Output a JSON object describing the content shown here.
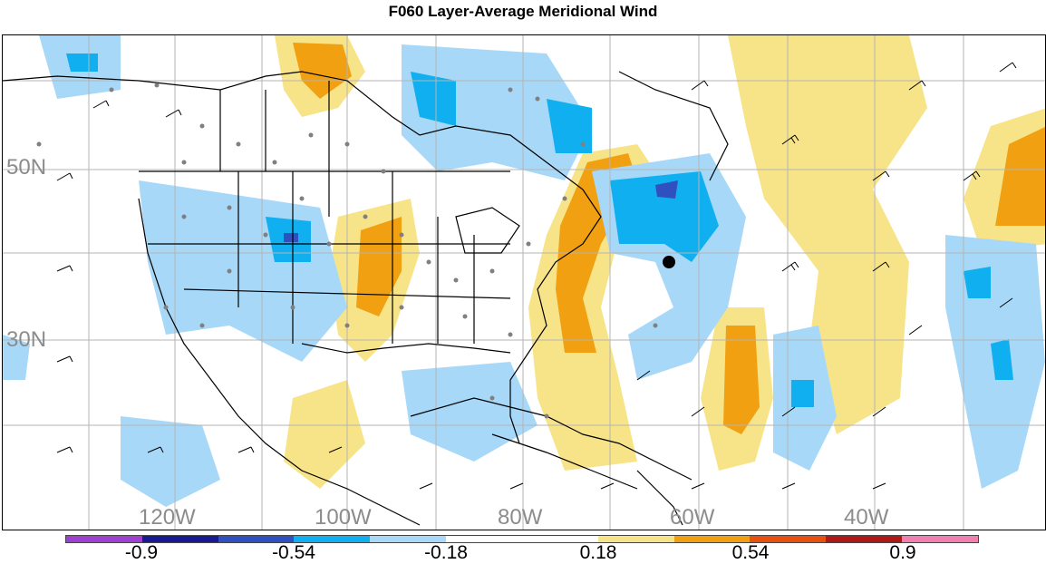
{
  "title": "F060 Layer-Average Meridional Wind",
  "lat_labels": [
    "50N",
    "30N"
  ],
  "lon_labels": [
    "120W",
    "100W",
    "80W",
    "60W",
    "40W"
  ],
  "colorbar": {
    "colors": [
      "#a040d0",
      "#1a1a90",
      "#3050c0",
      "#10b0f0",
      "#a8d8f8",
      "#ffffff",
      "#ffffff",
      "#f8e488",
      "#f0a010",
      "#e85010",
      "#b01818",
      "#f080b0"
    ],
    "labels": [
      "-0.9",
      "-0.54",
      "-0.18",
      "0.18",
      "0.54",
      "0.9"
    ]
  },
  "legend": {
    "negative_light": "#a8d8f8",
    "negative_mid": "#10b0f0",
    "negative_dark": "#3050c0",
    "positive_light": "#f8e488",
    "positive_mid": "#f0a010"
  }
}
